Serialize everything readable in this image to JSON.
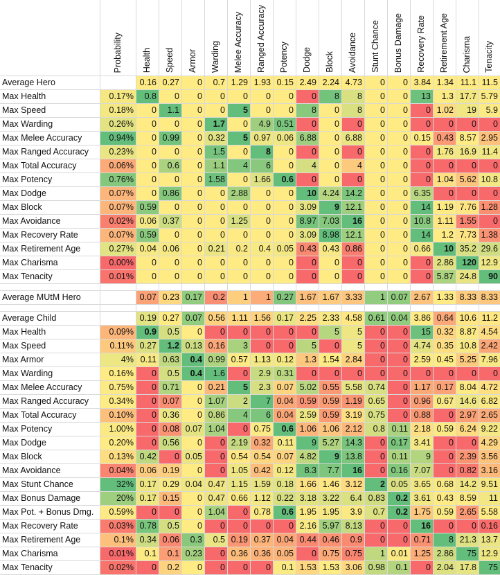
{
  "columns": [
    "Probability",
    "Health",
    "Speed",
    "Armor",
    "Warding",
    "Melee Accuracy",
    "Ranged Accuracy",
    "Potency",
    "Dodge",
    "Block",
    "Avoidance",
    "Stunt Chance",
    "Bonus Damage",
    "Recovery Rate",
    "Retirement Age",
    "Charisma",
    "Tenacity"
  ],
  "colors": {
    "low": "#F8696B",
    "mid": "#FFEB84",
    "high": "#63BE7B"
  },
  "hero": {
    "average": {
      "label": "Average Hero",
      "values": [
        "0.16",
        "0.27",
        "0",
        "0.7",
        "1.29",
        "1.93",
        "0.15",
        "2.49",
        "2.24",
        "4.73",
        "0",
        "0",
        "3.84",
        "1.34",
        "11.1",
        "11.5"
      ]
    },
    "rows": [
      {
        "label": "Max Health",
        "prob": "0.17%",
        "values": [
          "0.8",
          "0",
          "0",
          "0",
          "0",
          "0",
          "0",
          "0",
          "8",
          "8",
          "0",
          "0",
          "13",
          "1.3",
          "17.7",
          "5.79"
        ],
        "bold": []
      },
      {
        "label": "Max Speed",
        "prob": "0.18%",
        "values": [
          "0",
          "1.1",
          "0",
          "0",
          "5",
          "0",
          "0",
          "8",
          "0",
          "8",
          "0",
          "0",
          "0",
          "1.02",
          "19",
          "5.9"
        ],
        "bold": [
          4
        ]
      },
      {
        "label": "Max Warding",
        "prob": "0.26%",
        "values": [
          "0",
          "0",
          "0",
          "1.7",
          "0",
          "4.9",
          "0.51",
          "0",
          "0",
          "0",
          "0",
          "0",
          "0",
          "0",
          "0",
          "0"
        ],
        "bold": [
          3
        ]
      },
      {
        "label": "Max Melee Accuracy",
        "prob": "0.94%",
        "values": [
          "0",
          "0.99",
          "0",
          "0.32",
          "5",
          "0.97",
          "0.06",
          "6.88",
          "0",
          "6.88",
          "0",
          "0",
          "0.15",
          "0.43",
          "8.57",
          "2.95"
        ],
        "bold": [
          4
        ]
      },
      {
        "label": "Max Ranged Accuracy",
        "prob": "0.23%",
        "values": [
          "0",
          "0",
          "0",
          "1.5",
          "0",
          "8",
          "0",
          "0",
          "0",
          "0",
          "0",
          "0",
          "0",
          "1.76",
          "16.9",
          "11.4"
        ],
        "bold": [
          5
        ]
      },
      {
        "label": "Max Total Accuracy",
        "prob": "0.06%",
        "values": [
          "0",
          "0.6",
          "0",
          "1.1",
          "4",
          "6",
          "0",
          "4",
          "0",
          "4",
          "0",
          "0",
          "0",
          "0",
          "0",
          "0"
        ],
        "bold": []
      },
      {
        "label": "Max Potency",
        "prob": "0.76%",
        "values": [
          "0",
          "0",
          "0",
          "1.58",
          "0",
          "1.66",
          "0.6",
          "0",
          "0",
          "0",
          "0",
          "0",
          "0",
          "1.04",
          "5.62",
          "10.8"
        ],
        "bold": [
          6
        ]
      },
      {
        "label": "Max Dodge",
        "prob": "0.07%",
        "values": [
          "0",
          "0.86",
          "0",
          "0",
          "2.88",
          "0",
          "0",
          "10",
          "4.24",
          "14.2",
          "0",
          "0",
          "6.35",
          "0",
          "0",
          "0"
        ],
        "bold": [
          7
        ]
      },
      {
        "label": "Max Block",
        "prob": "0.07%",
        "values": [
          "0.59",
          "0",
          "0",
          "0",
          "0",
          "0",
          "0",
          "3.09",
          "9",
          "12.1",
          "0",
          "0",
          "14",
          "1.19",
          "7.76",
          "1.28"
        ],
        "bold": [
          8
        ]
      },
      {
        "label": "Max Avoidance",
        "prob": "0.02%",
        "values": [
          "0.06",
          "0.37",
          "0",
          "0",
          "1.25",
          "0",
          "0",
          "8.97",
          "7.03",
          "16",
          "0",
          "0",
          "10.8",
          "1.11",
          "1.55",
          "0"
        ],
        "bold": [
          9
        ]
      },
      {
        "label": "Max Recovery Rate",
        "prob": "0.07%",
        "values": [
          "0.59",
          "0",
          "0",
          "0",
          "0",
          "0",
          "0",
          "3.09",
          "8.98",
          "12.1",
          "0",
          "0",
          "14",
          "1.2",
          "7.73",
          "1.38"
        ],
        "bold": []
      },
      {
        "label": "Max Retirement Age",
        "prob": "0.27%",
        "values": [
          "0.04",
          "0.06",
          "0",
          "0.21",
          "0.2",
          "0.4",
          "0.05",
          "0.43",
          "0.43",
          "0.86",
          "0",
          "0",
          "0.66",
          "10",
          "35.2",
          "29.6"
        ],
        "bold": [
          13
        ]
      },
      {
        "label": "Max Charisma",
        "prob": "0.00%",
        "values": [
          "0",
          "0",
          "0",
          "0",
          "0",
          "0",
          "0",
          "0",
          "0",
          "0",
          "0",
          "0",
          "0",
          "2.86",
          "120",
          "12.9"
        ],
        "bold": [
          14
        ]
      },
      {
        "label": "Max Tenacity",
        "prob": "0.01%",
        "values": [
          "0",
          "0",
          "0",
          "0",
          "0",
          "0",
          "0",
          "0",
          "0",
          "0",
          "0",
          "0",
          "0",
          "5.87",
          "24.8",
          "90"
        ],
        "bold": [
          15
        ]
      }
    ]
  },
  "mutm": {
    "label": "Average MUtM Hero",
    "values": [
      "0.07",
      "0.23",
      "0.17",
      "0.2",
      "1",
      "1",
      "0.27",
      "1.67",
      "1.67",
      "3.33",
      "1",
      "0.07",
      "2.67",
      "1.33",
      "8.33",
      "8.33"
    ]
  },
  "child": {
    "average": {
      "label": "Average Child",
      "values": [
        "0.19",
        "0.27",
        "0.07",
        "0.56",
        "1.11",
        "1.56",
        "0.17",
        "2.25",
        "2.33",
        "4.58",
        "0.61",
        "0.04",
        "3.86",
        "0.64",
        "10.6",
        "11.2"
      ]
    },
    "rows": [
      {
        "label": "Max Health",
        "prob": "0.09%",
        "values": [
          "0.9",
          "0.5",
          "0",
          "0",
          "0",
          "0",
          "0",
          "0",
          "5",
          "5",
          "0",
          "0",
          "15",
          "0.32",
          "8.87",
          "4.54"
        ],
        "bold": [
          0
        ]
      },
      {
        "label": "Max Speed",
        "prob": "0.11%",
        "values": [
          "0.27",
          "1.2",
          "0.13",
          "0.16",
          "3",
          "0",
          "0",
          "5",
          "0",
          "5",
          "0",
          "0",
          "4.74",
          "0.35",
          "10.8",
          "2.42"
        ],
        "bold": [
          1
        ]
      },
      {
        "label": "Max Armor",
        "prob": "4%",
        "values": [
          "0.11",
          "0.63",
          "0.4",
          "0.99",
          "0.57",
          "1.13",
          "0.12",
          "1.3",
          "1.54",
          "2.84",
          "0",
          "0",
          "2.59",
          "0.45",
          "5.25",
          "7.96"
        ],
        "bold": [
          2
        ]
      },
      {
        "label": "Max Warding",
        "prob": "0.16%",
        "values": [
          "0",
          "0.5",
          "0.4",
          "1.6",
          "0",
          "2.9",
          "0.31",
          "0",
          "0",
          "0",
          "0",
          "0",
          "0",
          "0",
          "0",
          "0"
        ],
        "bold": [
          2
        ]
      },
      {
        "label": "Max Melee Accuracy",
        "prob": "0.75%",
        "values": [
          "0",
          "0.71",
          "0",
          "0.21",
          "5",
          "2.3",
          "0.07",
          "5.02",
          "0.55",
          "5.58",
          "0.74",
          "0",
          "1.17",
          "0.17",
          "8.04",
          "4.72"
        ],
        "bold": [
          4
        ]
      },
      {
        "label": "Max Ranged Accuracy",
        "prob": "0.34%",
        "values": [
          "0",
          "0.07",
          "0",
          "1.07",
          "2",
          "7",
          "0.04",
          "0.59",
          "0.59",
          "1.19",
          "0.65",
          "0",
          "0.96",
          "0.67",
          "14.6",
          "6.82"
        ],
        "bold": []
      },
      {
        "label": "Max Total Accuracy",
        "prob": "0.10%",
        "values": [
          "0",
          "0.36",
          "0",
          "0.86",
          "4",
          "6",
          "0.04",
          "2.59",
          "0.59",
          "3.19",
          "0.75",
          "0",
          "0.88",
          "0",
          "2.97",
          "2.65"
        ],
        "bold": []
      },
      {
        "label": "Max Potency",
        "prob": "1.00%",
        "values": [
          "0",
          "0.08",
          "0.07",
          "1.04",
          "0",
          "0.75",
          "0.6",
          "1.06",
          "1.06",
          "2.12",
          "0.8",
          "0.11",
          "2.18",
          "0.59",
          "6.24",
          "9.22"
        ],
        "bold": [
          6
        ]
      },
      {
        "label": "Max Dodge",
        "prob": "0.20%",
        "values": [
          "0",
          "0.56",
          "0",
          "0",
          "2.19",
          "0.32",
          "0.11",
          "9",
          "5.27",
          "14.3",
          "0",
          "0.17",
          "3.41",
          "0",
          "0",
          "4.29"
        ],
        "bold": []
      },
      {
        "label": "Max Block",
        "prob": "0.13%",
        "values": [
          "0.42",
          "0",
          "0.05",
          "0",
          "0.54",
          "0.54",
          "0.07",
          "4.82",
          "9",
          "13.8",
          "0",
          "0.11",
          "9",
          "0",
          "2.39",
          "3.56"
        ],
        "bold": [
          8
        ]
      },
      {
        "label": "Max Avoidance",
        "prob": "0.04%",
        "values": [
          "0.06",
          "0.19",
          "0",
          "0",
          "1.05",
          "0.42",
          "0.12",
          "8.3",
          "7.7",
          "16",
          "0",
          "0.16",
          "7.07",
          "0",
          "0.82",
          "3.16"
        ],
        "bold": [
          9
        ]
      },
      {
        "label": "Max Stunt Chance",
        "prob": "32%",
        "values": [
          "0.17",
          "0.29",
          "0.04",
          "0.47",
          "1.15",
          "1.59",
          "0.18",
          "1.66",
          "1.46",
          "3.12",
          "2",
          "0.05",
          "3.65",
          "0.68",
          "14.2",
          "9.51"
        ],
        "bold": [
          10
        ]
      },
      {
        "label": "Max Bonus Damage",
        "prob": "20%",
        "values": [
          "0.17",
          "0.15",
          "0",
          "0.47",
          "0.66",
          "1.12",
          "0.22",
          "3.18",
          "3.22",
          "6.4",
          "0.83",
          "0.2",
          "3.61",
          "0.43",
          "8.59",
          "11"
        ],
        "bold": [
          11
        ]
      },
      {
        "label": "Max Pot. + Bonus Dmg.",
        "prob": "0.59%",
        "values": [
          "0",
          "0",
          "0",
          "1.04",
          "0",
          "0.78",
          "0.6",
          "1.95",
          "1.95",
          "3.9",
          "0.7",
          "0.2",
          "1.75",
          "0.59",
          "2.65",
          "5.58"
        ],
        "bold": [
          6,
          11
        ]
      },
      {
        "label": "Max Recovery Rate",
        "prob": "0.03%",
        "values": [
          "0.78",
          "0.5",
          "0",
          "0",
          "0",
          "0",
          "0",
          "2.16",
          "5.97",
          "8.13",
          "0",
          "0",
          "16",
          "0",
          "0",
          "0.16"
        ],
        "bold": [
          12
        ]
      },
      {
        "label": "Max Retirement Age",
        "prob": "0.1%",
        "values": [
          "0.34",
          "0.06",
          "0.3",
          "0.5",
          "0.19",
          "0.37",
          "0.04",
          "0.44",
          "0.46",
          "0.9",
          "0",
          "0",
          "0.71",
          "8",
          "21.3",
          "13.7"
        ],
        "bold": []
      },
      {
        "label": "Max Charisma",
        "prob": "0.01%",
        "values": [
          "0.1",
          "0.1",
          "0.23",
          "0",
          "0.36",
          "0.36",
          "0.05",
          "0",
          "0.75",
          "0.75",
          "1",
          "0.01",
          "1.25",
          "2.86",
          "75",
          "12.9"
        ],
        "bold": []
      },
      {
        "label": "Max Tenacity",
        "prob": "0.02%",
        "values": [
          "0",
          "0.2",
          "0",
          "0",
          "0",
          "0",
          "0.1",
          "1.53",
          "1.53",
          "3.06",
          "0.98",
          "0.1",
          "0",
          "2.04",
          "17.8",
          "75"
        ],
        "bold": []
      }
    ]
  }
}
